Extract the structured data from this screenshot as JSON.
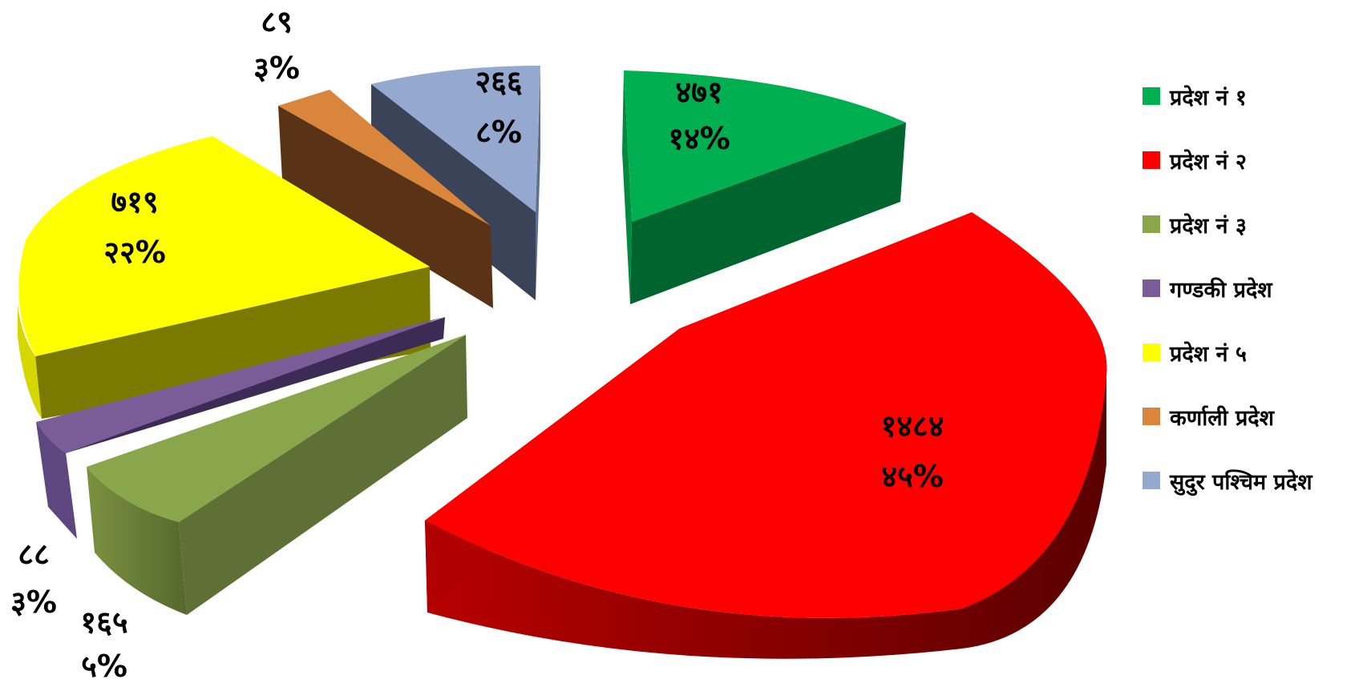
{
  "chart_data": {
    "type": "pie",
    "title": "",
    "legend_position": "right",
    "slices": [
      {
        "name": "प्रदेश नं १",
        "value": 471,
        "value_label": "४७१",
        "percent": 14,
        "percent_label": "१४%",
        "color": "#00B050"
      },
      {
        "name": "प्रदेश नं २",
        "value": 1484,
        "value_label": "१४८४",
        "percent": 45,
        "percent_label": "४५%",
        "color": "#FF0000"
      },
      {
        "name": "प्रदेश नं ३",
        "value": 165,
        "value_label": "१६५",
        "percent": 5,
        "percent_label": "५%",
        "color": "#8AA64A"
      },
      {
        "name": "गण्डकी प्रदेश",
        "value": 88,
        "value_label": "८८",
        "percent": 3,
        "percent_label": "३%",
        "color": "#7A5C99"
      },
      {
        "name": "प्रदेश नं ५",
        "value": 719,
        "value_label": "७१९",
        "percent": 22,
        "percent_label": "२२%",
        "color": "#FFFF00"
      },
      {
        "name": "कर्णाली प्रदेश",
        "value": 89,
        "value_label": "८९",
        "percent": 3,
        "percent_label": "३%",
        "color": "#D9853B"
      },
      {
        "name": "सुदुर पश्चिम प्रदेश",
        "value": 266,
        "value_label": "२६६",
        "percent": 8,
        "percent_label": "८%",
        "color": "#94A8D0"
      }
    ]
  }
}
